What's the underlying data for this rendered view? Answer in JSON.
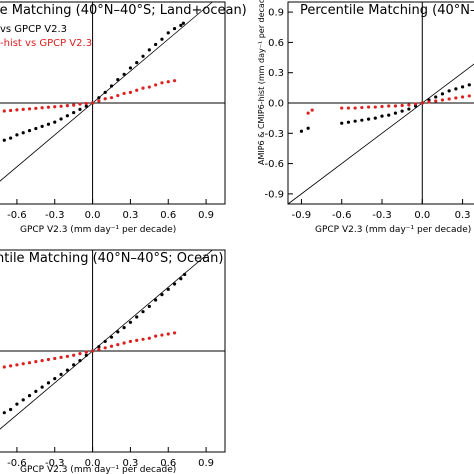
{
  "chart_data": [
    {
      "type": "scatter",
      "title": "le Matching (40°N–40°S; Land+ocean)",
      "xlabel": "GPCP V2.3 (mm day⁻¹ per decade)",
      "ylabel": "",
      "xlim": [
        -0.75,
        1.05
      ],
      "ylim": [
        -0.95,
        0.95
      ],
      "xticks": [
        "-0.6",
        "-0.3",
        "0.0",
        "0.3",
        "0.6",
        "0.9"
      ],
      "yticks": [],
      "legend": [
        "vs GPCP V2.3",
        "-hist vs GPCP V2.3"
      ],
      "legend_colors": [
        "#000000",
        "#dd2020"
      ],
      "series": [
        {
          "name": "vs GPCP V2.3",
          "color": "#000000",
          "x": [
            -0.75,
            -0.7,
            -0.65,
            -0.6,
            -0.55,
            -0.5,
            -0.45,
            -0.4,
            -0.35,
            -0.3,
            -0.25,
            -0.2,
            -0.15,
            -0.1,
            -0.05,
            0.0,
            0.05,
            0.1,
            0.15,
            0.2,
            0.25,
            0.3,
            0.35,
            0.4,
            0.45,
            0.5,
            0.55,
            0.6,
            0.65,
            0.7,
            0.72
          ],
          "y": [
            -0.38,
            -0.35,
            -0.33,
            -0.3,
            -0.28,
            -0.26,
            -0.24,
            -0.22,
            -0.2,
            -0.18,
            -0.15,
            -0.12,
            -0.09,
            -0.06,
            -0.03,
            0.0,
            0.05,
            0.1,
            0.16,
            0.22,
            0.27,
            0.33,
            0.38,
            0.44,
            0.5,
            0.55,
            0.6,
            0.66,
            0.7,
            0.73,
            0.75
          ]
        },
        {
          "name": "-hist vs GPCP V2.3",
          "color": "#dd2020",
          "x": [
            -0.75,
            -0.7,
            -0.65,
            -0.6,
            -0.55,
            -0.5,
            -0.45,
            -0.4,
            -0.35,
            -0.3,
            -0.25,
            -0.2,
            -0.15,
            -0.1,
            -0.05,
            0.0,
            0.05,
            0.1,
            0.15,
            0.2,
            0.25,
            0.3,
            0.35,
            0.4,
            0.45,
            0.5,
            0.55,
            0.6,
            0.65
          ],
          "y": [
            -0.08,
            -0.075,
            -0.07,
            -0.065,
            -0.06,
            -0.055,
            -0.05,
            -0.045,
            -0.04,
            -0.035,
            -0.03,
            -0.025,
            -0.02,
            -0.01,
            -0.005,
            0.0,
            0.02,
            0.04,
            0.05,
            0.07,
            0.09,
            0.1,
            0.12,
            0.14,
            0.15,
            0.17,
            0.19,
            0.2,
            0.21
          ]
        }
      ]
    },
    {
      "type": "scatter",
      "title": "Percentile Matching (40°N–40",
      "xlabel": "GPCP V2.3 (mm day⁻¹ per decade)",
      "ylabel": "AMIP6 & CMIP6-hist (mm day⁻¹ per decade)",
      "xlim": [
        -1.0,
        0.4
      ],
      "ylim": [
        -1.0,
        1.0
      ],
      "xticks": [
        "-0.9",
        "-0.6",
        "-0.3",
        "0.0",
        "0.3"
      ],
      "yticks": [
        "-0.9",
        "-0.6",
        "-0.3",
        "0.0",
        "0.3",
        "0.6",
        "0.9"
      ],
      "series": [
        {
          "name": "black",
          "color": "#000000",
          "x": [
            -0.9,
            -0.85,
            -0.6,
            -0.55,
            -0.5,
            -0.45,
            -0.4,
            -0.35,
            -0.3,
            -0.25,
            -0.2,
            -0.15,
            -0.1,
            -0.05,
            0.0,
            0.05,
            0.1,
            0.15,
            0.2,
            0.25,
            0.3,
            0.35,
            0.4
          ],
          "y": [
            -0.28,
            -0.25,
            -0.2,
            -0.19,
            -0.18,
            -0.17,
            -0.16,
            -0.15,
            -0.13,
            -0.12,
            -0.1,
            -0.08,
            -0.06,
            -0.03,
            0.0,
            0.03,
            0.06,
            0.09,
            0.12,
            0.14,
            0.16,
            0.18,
            0.2
          ]
        },
        {
          "name": "red",
          "color": "#dd2020",
          "x": [
            -0.85,
            -0.82,
            -0.6,
            -0.55,
            -0.5,
            -0.45,
            -0.4,
            -0.35,
            -0.3,
            -0.25,
            -0.2,
            -0.15,
            -0.1,
            -0.05,
            0.0,
            0.05,
            0.1,
            0.15,
            0.2,
            0.25,
            0.3,
            0.35,
            0.4
          ],
          "y": [
            -0.1,
            -0.07,
            -0.05,
            -0.05,
            -0.05,
            -0.045,
            -0.04,
            -0.04,
            -0.035,
            -0.03,
            -0.03,
            -0.025,
            -0.02,
            -0.01,
            0.0,
            0.01,
            0.02,
            0.03,
            0.04,
            0.05,
            0.06,
            0.07,
            0.08
          ]
        }
      ]
    },
    {
      "type": "scatter",
      "title": "ntile Matching (40°N–40°S; Ocean)",
      "xlabel": "GPCP V2.3 (mm day⁻¹ per decade)",
      "ylabel": "",
      "xlim": [
        -0.75,
        1.05
      ],
      "ylim": [
        -0.95,
        0.95
      ],
      "xticks": [
        "-0.6",
        "-0.3",
        "0.0",
        "0.3",
        "0.6",
        "0.9"
      ],
      "yticks": [],
      "series": [
        {
          "name": "black",
          "color": "#000000",
          "x": [
            -0.75,
            -0.7,
            -0.65,
            -0.6,
            -0.55,
            -0.5,
            -0.45,
            -0.4,
            -0.35,
            -0.3,
            -0.25,
            -0.2,
            -0.15,
            -0.1,
            -0.05,
            0.0,
            0.05,
            0.1,
            0.15,
            0.2,
            0.25,
            0.3,
            0.35,
            0.4,
            0.45,
            0.5,
            0.55,
            0.6,
            0.65,
            0.7,
            0.73
          ],
          "y": [
            -0.62,
            -0.58,
            -0.55,
            -0.5,
            -0.46,
            -0.42,
            -0.38,
            -0.34,
            -0.3,
            -0.26,
            -0.22,
            -0.18,
            -0.13,
            -0.09,
            -0.04,
            0.0,
            0.04,
            0.09,
            0.13,
            0.18,
            0.22,
            0.27,
            0.32,
            0.37,
            0.42,
            0.48,
            0.53,
            0.58,
            0.63,
            0.68,
            0.72
          ]
        },
        {
          "name": "red",
          "color": "#dd2020",
          "x": [
            -0.75,
            -0.7,
            -0.65,
            -0.6,
            -0.55,
            -0.5,
            -0.45,
            -0.4,
            -0.35,
            -0.3,
            -0.25,
            -0.2,
            -0.15,
            -0.1,
            -0.05,
            0.0,
            0.05,
            0.1,
            0.15,
            0.2,
            0.25,
            0.3,
            0.35,
            0.4,
            0.45,
            0.5,
            0.55,
            0.6,
            0.65
          ],
          "y": [
            -0.16,
            -0.15,
            -0.14,
            -0.13,
            -0.12,
            -0.11,
            -0.1,
            -0.09,
            -0.08,
            -0.07,
            -0.06,
            -0.05,
            -0.04,
            -0.025,
            -0.01,
            0.0,
            0.015,
            0.03,
            0.045,
            0.06,
            0.075,
            0.09,
            0.1,
            0.11,
            0.12,
            0.14,
            0.15,
            0.16,
            0.17
          ]
        }
      ]
    }
  ]
}
